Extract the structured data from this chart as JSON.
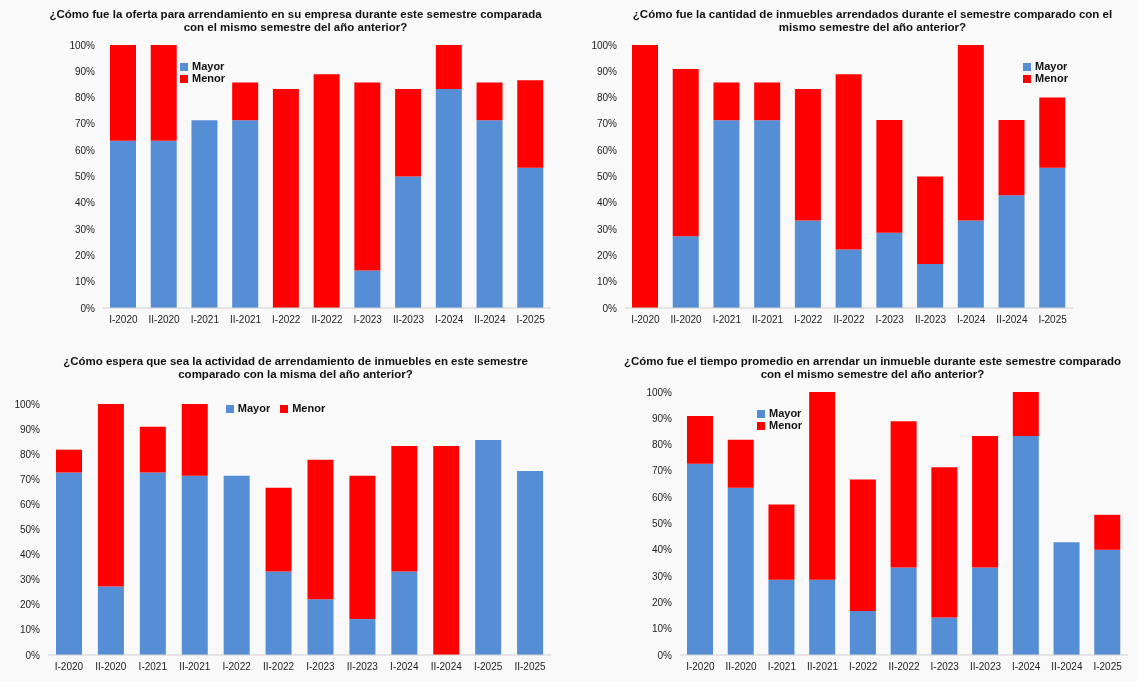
{
  "chart_data": [
    {
      "type": "bar",
      "stacked": true,
      "title": "¿Cómo fue la oferta para arrendamiento en su empresa durante este semestre comparada con el mismo semestre del año anterior?",
      "categories": [
        "I-2020",
        "II-2020",
        "I-2021",
        "II-2021",
        "I-2022",
        "II-2022",
        "I-2023",
        "II-2023",
        "I-2024",
        "II-2024",
        "I-2025"
      ],
      "series": [
        {
          "name": "Mayor",
          "color": "#558ed5",
          "values": [
            63.6,
            63.6,
            71.4,
            71.4,
            0,
            0,
            14.3,
            50,
            83.3,
            71.4,
            53.3
          ]
        },
        {
          "name": "Menor",
          "color": "#ff0000",
          "values": [
            36.4,
            36.4,
            0,
            14.3,
            83.3,
            88.9,
            71.4,
            33.3,
            16.7,
            14.3,
            33.3
          ]
        }
      ],
      "ylim": [
        0,
        100
      ],
      "yticks": [
        {
          "value": 0,
          "label": "0%"
        },
        {
          "value": 10,
          "label": "10%"
        },
        {
          "value": 20,
          "label": "20%"
        },
        {
          "value": 30,
          "label": "30%"
        },
        {
          "value": 40,
          "label": "40%"
        },
        {
          "value": 50,
          "label": "50%"
        },
        {
          "value": 60,
          "label": "60%"
        },
        {
          "value": 70,
          "label": "70%"
        },
        {
          "value": 80,
          "label": "80%"
        },
        {
          "value": 90,
          "label": "90%"
        },
        {
          "value": 100,
          "label": "100%"
        }
      ],
      "legend": "top left",
      "grid": false
    },
    {
      "type": "bar",
      "stacked": true,
      "title": "¿Cómo fue la cantidad de inmuebles arrendados durante el semestre comparado con el mismo semestre del año anterior?",
      "categories": [
        "I-2020",
        "II-2020",
        "I-2021",
        "II-2021",
        "I-2022",
        "II-2022",
        "I-2023",
        "II-2023",
        "I-2024",
        "II-2024",
        "I-2025"
      ],
      "series": [
        {
          "name": "Mayor",
          "color": "#558ed5",
          "values": [
            0,
            27.3,
            71.4,
            71.4,
            33.3,
            22.2,
            28.6,
            16.7,
            33.3,
            42.9,
            53.3
          ]
        },
        {
          "name": "Menor",
          "color": "#ff0000",
          "values": [
            100,
            63.6,
            14.3,
            14.3,
            50,
            66.7,
            42.9,
            33.3,
            66.7,
            28.6,
            26.7
          ]
        }
      ],
      "ylim": [
        0,
        100
      ],
      "yticks": [
        {
          "value": 0,
          "label": "0%"
        },
        {
          "value": 10,
          "label": "10%"
        },
        {
          "value": 20,
          "label": "20%"
        },
        {
          "value": 30,
          "label": "30%"
        },
        {
          "value": 40,
          "label": "40%"
        },
        {
          "value": 50,
          "label": "50%"
        },
        {
          "value": 60,
          "label": "60%"
        },
        {
          "value": 70,
          "label": "70%"
        },
        {
          "value": 80,
          "label": "80%"
        },
        {
          "value": 90,
          "label": "90%"
        },
        {
          "value": 100,
          "label": "100%"
        }
      ],
      "legend": "top right",
      "grid": false
    },
    {
      "type": "bar",
      "stacked": true,
      "title": "¿Cómo espera que sea la actividad de arrendamiento de inmuebles en este semestre comparado con la misma del año anterior?",
      "categories": [
        "I-2020",
        "II-2020",
        "I-2021",
        "II-2021",
        "I-2022",
        "II-2022",
        "I-2023",
        "II-2023",
        "I-2024",
        "II-2024",
        "I-2025",
        "II-2025"
      ],
      "series": [
        {
          "name": "Mayor",
          "color": "#558ed5",
          "values": [
            72.7,
            27.3,
            72.7,
            71.4,
            71.4,
            33.3,
            22.2,
            14.3,
            33.3,
            0,
            85.7,
            73.3
          ]
        },
        {
          "name": "Menor",
          "color": "#ff0000",
          "values": [
            9.1,
            72.7,
            18.2,
            28.6,
            0,
            33.3,
            55.6,
            57.1,
            50,
            83.3,
            0,
            0
          ]
        }
      ],
      "ylim": [
        0,
        100
      ],
      "yticks": [
        {
          "value": 0,
          "label": "0%"
        },
        {
          "value": 10,
          "label": "10%"
        },
        {
          "value": 20,
          "label": "20%"
        },
        {
          "value": 30,
          "label": "30%"
        },
        {
          "value": 40,
          "label": "40%"
        },
        {
          "value": 50,
          "label": "50%"
        },
        {
          "value": 60,
          "label": "60%"
        },
        {
          "value": 70,
          "label": "70%"
        },
        {
          "value": 80,
          "label": "80%"
        },
        {
          "value": 90,
          "label": "90%"
        },
        {
          "value": 100,
          "label": "100%"
        }
      ],
      "legend": "top",
      "grid": false
    },
    {
      "type": "bar",
      "stacked": true,
      "title": "¿Cómo fue el tiempo promedio en arrendar un inmueble durante este semestre comparado con el mismo semestre del año anterior?",
      "categories": [
        "I-2020",
        "II-2020",
        "I-2021",
        "II-2021",
        "I-2022",
        "II-2022",
        "I-2023",
        "II-2023",
        "I-2024",
        "II-2024",
        "I-2025"
      ],
      "series": [
        {
          "name": "Mayor",
          "color": "#558ed5",
          "values": [
            72.7,
            63.6,
            28.6,
            28.6,
            16.7,
            33.3,
            14.3,
            33.3,
            83.3,
            42.9,
            40
          ]
        },
        {
          "name": "Menor",
          "color": "#ff0000",
          "values": [
            18.2,
            18.2,
            28.6,
            71.4,
            50,
            55.6,
            57.1,
            50,
            16.7,
            0,
            13.3
          ]
        }
      ],
      "ylim": [
        0,
        100
      ],
      "yticks": [
        {
          "value": 0,
          "label": "0%"
        },
        {
          "value": 10,
          "label": "10%"
        },
        {
          "value": 20,
          "label": "20%"
        },
        {
          "value": 30,
          "label": "30%"
        },
        {
          "value": 40,
          "label": "40%"
        },
        {
          "value": 50,
          "label": "50%"
        },
        {
          "value": 60,
          "label": "60%"
        },
        {
          "value": 70,
          "label": "70%"
        },
        {
          "value": 80,
          "label": "80%"
        },
        {
          "value": 90,
          "label": "90%"
        },
        {
          "value": 100,
          "label": "100%"
        }
      ],
      "legend": "top left",
      "grid": false
    }
  ]
}
